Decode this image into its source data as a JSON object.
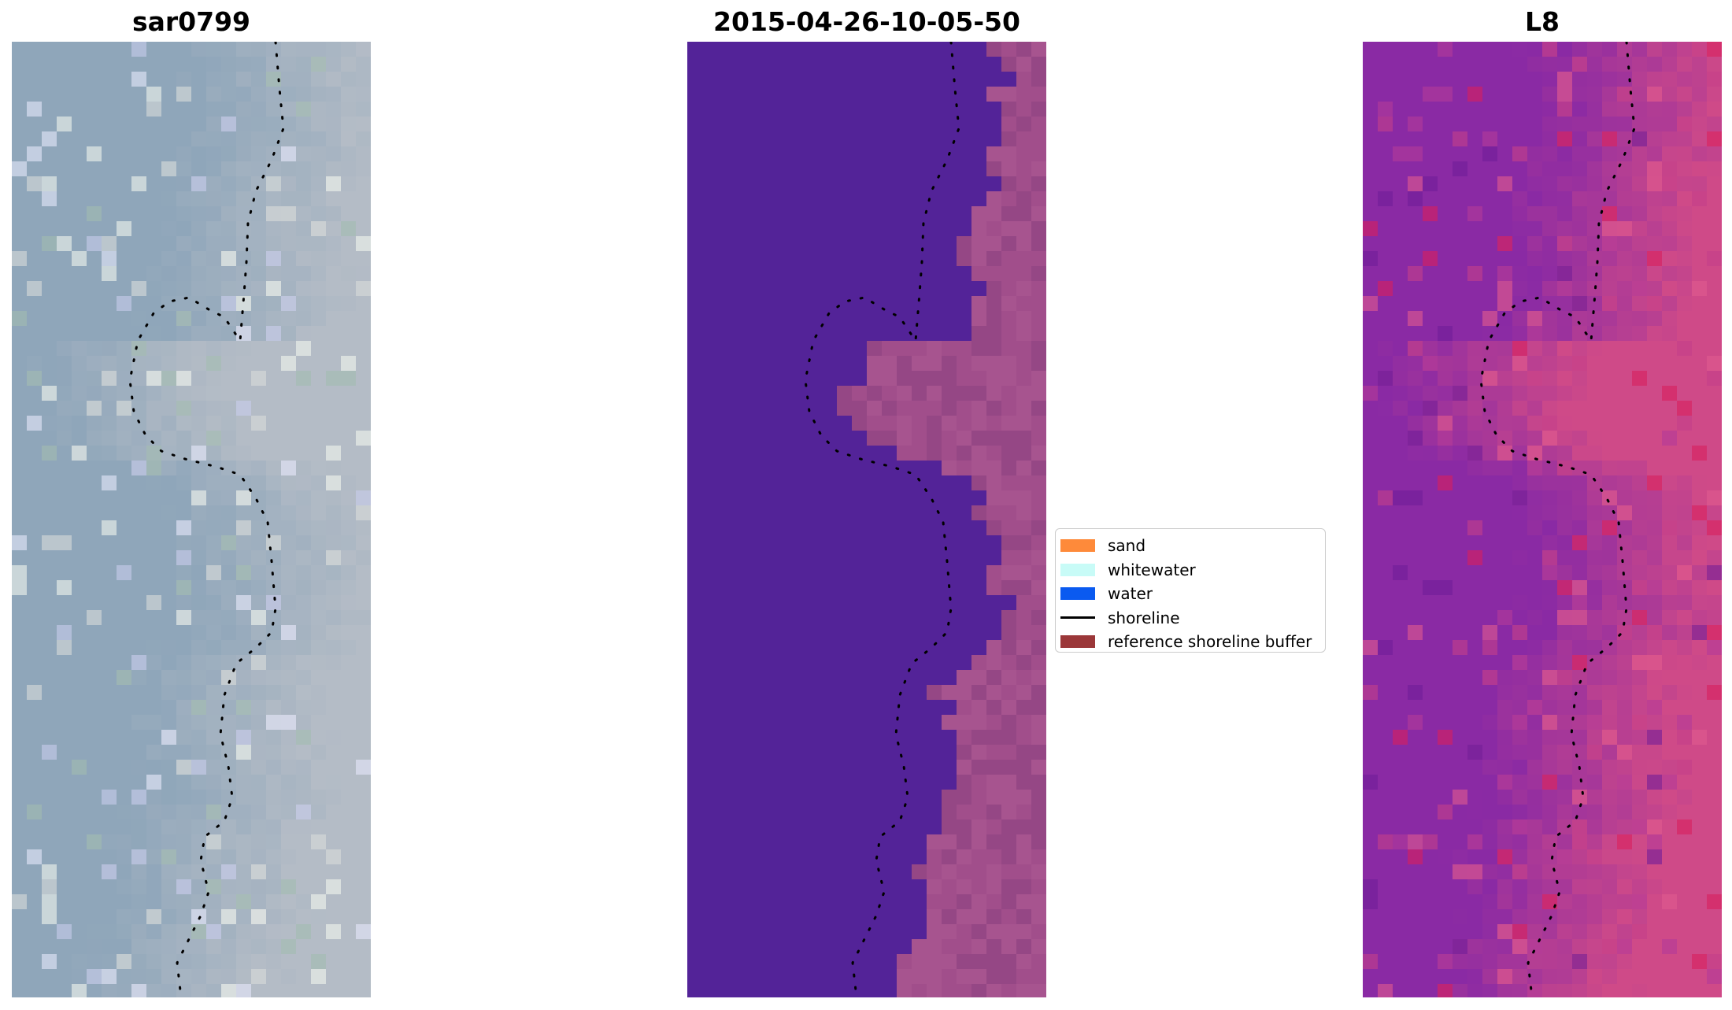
{
  "panels": [
    {
      "title": "sar0799",
      "kind": "rgb",
      "base_color": "#8fa6ba",
      "land_color": "#b4bcc6",
      "accent_colors": [
        "#c8ccec",
        "#e6e8fb",
        "#a2bcb0",
        "#d8dcda",
        "#f2f6ee"
      ]
    },
    {
      "title": "2015-04-26-10-05-50",
      "kind": "classified",
      "base_color": "#532398",
      "land_color": "#9a4a86",
      "accent_colors": [
        "#b35d98",
        "#a85290",
        "#8f4384"
      ]
    },
    {
      "title": "L8",
      "kind": "index",
      "base_color": "#8a2aa4",
      "land_color": "#cf4a88",
      "accent_colors": [
        "#6f1c98",
        "#c43f8a",
        "#d81f5c",
        "#b33a98",
        "#e05a8e"
      ]
    }
  ],
  "legend": {
    "items": [
      {
        "label": "sand",
        "color": "#fe8a3a",
        "type": "patch"
      },
      {
        "label": "whitewater",
        "color": "#c8fbf7",
        "type": "patch"
      },
      {
        "label": "water",
        "color": "#0a5af0",
        "type": "patch"
      },
      {
        "label": "shoreline",
        "color": "#000000",
        "type": "line"
      },
      {
        "label": "reference shoreline buffer",
        "color": "#9b3739",
        "type": "patch"
      }
    ]
  }
}
